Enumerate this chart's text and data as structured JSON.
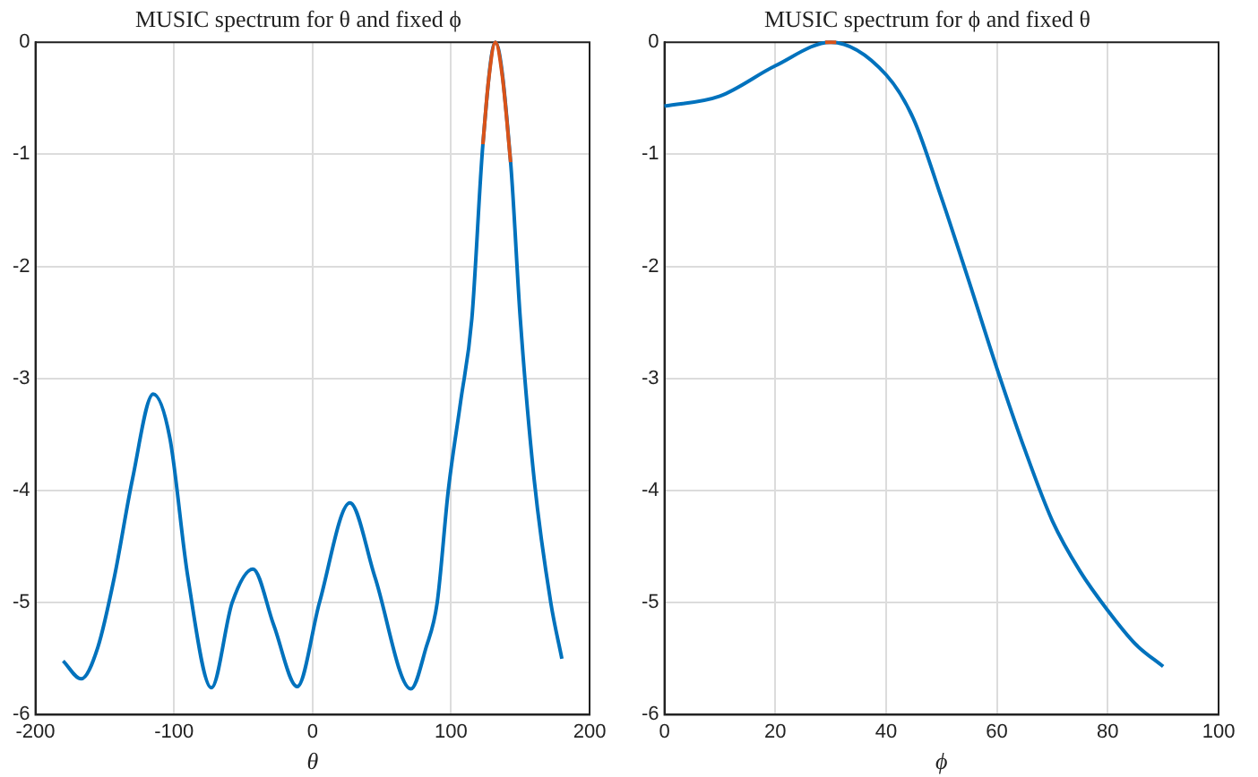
{
  "chart_data": [
    {
      "type": "line",
      "title": "MUSIC spectrum for θ and fixed ϕ",
      "xlabel": "θ",
      "xlim": [
        -200,
        200
      ],
      "xticks": [
        -200,
        -100,
        0,
        100,
        200
      ],
      "ylim": [
        -6,
        0
      ],
      "yticks": [
        -6,
        -5,
        -4,
        -3,
        -2,
        -1,
        0
      ],
      "grid": true,
      "series": [
        {
          "color": "#0072bd",
          "x": [
            -180,
            -167,
            -155,
            -143,
            -130,
            -115,
            -103,
            -90,
            -73,
            -58,
            -43,
            -28,
            -11,
            5,
            27,
            45,
            71,
            82,
            90,
            98,
            107,
            115,
            123,
            132,
            143,
            150,
            160,
            172,
            180
          ],
          "values": [
            -5.52,
            -5.68,
            -5.4,
            -4.77,
            -3.9,
            -3.14,
            -3.53,
            -4.77,
            -5.76,
            -5.0,
            -4.7,
            -5.2,
            -5.75,
            -5.0,
            -4.11,
            -4.77,
            -5.77,
            -5.4,
            -5.0,
            -4.0,
            -3.2,
            -2.47,
            -0.91,
            0,
            -1.07,
            -2.47,
            -3.9,
            -5.0,
            -5.5
          ]
        },
        {
          "color": "#d95319",
          "x": [
            123,
            127,
            132,
            137,
            143
          ],
          "values": [
            -0.91,
            -0.35,
            0,
            -0.3,
            -1.07
          ]
        }
      ]
    },
    {
      "type": "line",
      "title": "MUSIC spectrum for ϕ and fixed θ",
      "xlabel": "ϕ",
      "xlim": [
        0,
        100
      ],
      "xticks": [
        0,
        20,
        40,
        60,
        80,
        100
      ],
      "ylim": [
        -6,
        0
      ],
      "yticks": [
        -6,
        -5,
        -4,
        -3,
        -2,
        -1,
        0
      ],
      "grid": true,
      "series": [
        {
          "color": "#0072bd",
          "x": [
            0,
            10,
            20,
            30,
            40,
            45,
            50,
            55,
            60,
            65,
            70,
            75,
            80,
            85,
            90
          ],
          "values": [
            -0.57,
            -0.48,
            -0.21,
            0,
            -0.29,
            -0.69,
            -1.39,
            -2.14,
            -2.91,
            -3.63,
            -4.27,
            -4.72,
            -5.07,
            -5.37,
            -5.57
          ]
        },
        {
          "color": "#d95319",
          "x": [
            29,
            30,
            31
          ],
          "values": [
            0,
            0,
            0
          ]
        }
      ]
    }
  ]
}
